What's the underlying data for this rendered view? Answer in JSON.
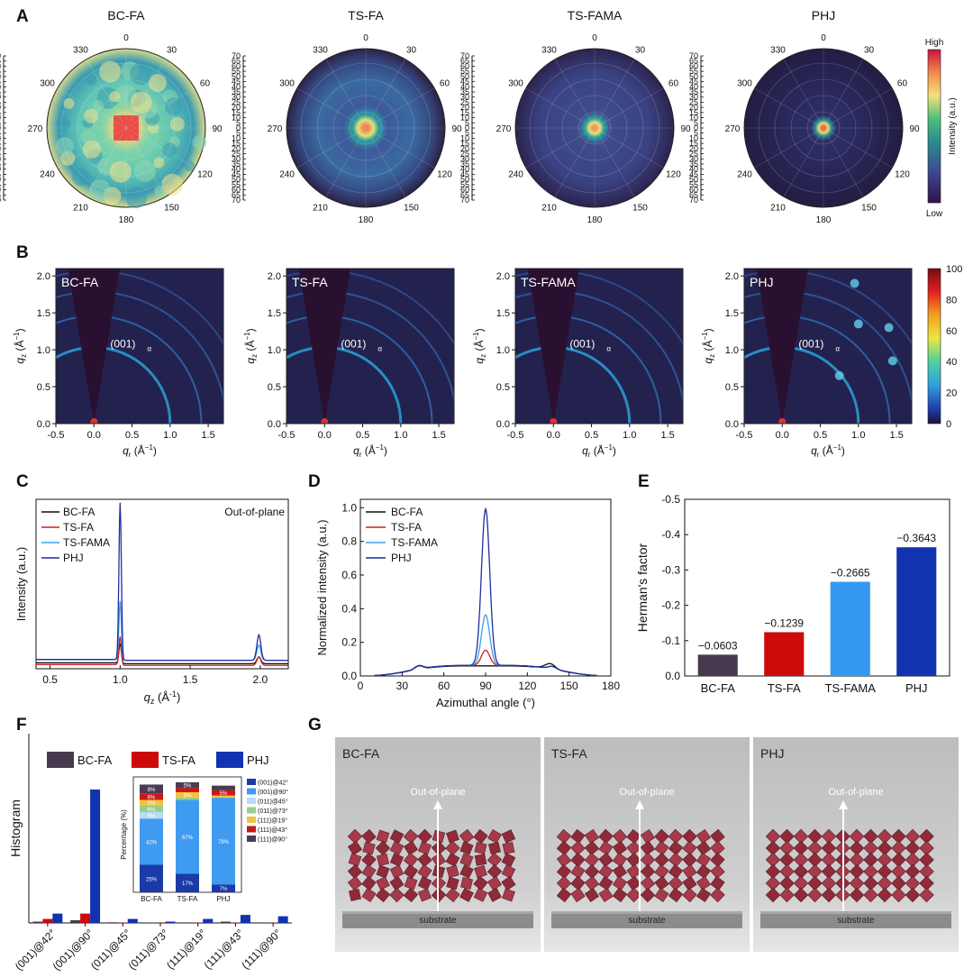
{
  "panel_letters": {
    "A": "A",
    "B": "B",
    "C": "C",
    "D": "D",
    "E": "E",
    "F": "F",
    "G": "G"
  },
  "samples": [
    "BC-FA",
    "TS-FA",
    "TS-FAMA",
    "PHJ"
  ],
  "panel_a": {
    "titles": [
      "BC-FA",
      "TS-FA",
      "TS-FAMA",
      "PHJ"
    ],
    "angle_labels": [
      "0",
      "30",
      "60",
      "90",
      "120",
      "150",
      "180",
      "210",
      "240",
      "270",
      "300",
      "330"
    ],
    "radial_ticks": [
      "70",
      "65",
      "60",
      "55",
      "50",
      "45",
      "40",
      "35",
      "30",
      "25",
      "20",
      "15",
      "10",
      "5",
      "0",
      "5",
      "10",
      "15",
      "20",
      "25",
      "30",
      "35",
      "40",
      "45",
      "50",
      "55",
      "60",
      "65",
      "70"
    ],
    "colorbar": {
      "high": "High",
      "low": "Low",
      "label": "Intensity (a.u.)"
    }
  },
  "panel_b": {
    "labels": [
      "BC-FA",
      "TS-FA",
      "TS-FAMA",
      "PHJ"
    ],
    "peak_label": "(001)",
    "peak_sub": "α",
    "ylabel_main": "q",
    "ylabel_sub": "z",
    "ylabel_unit": " (Å",
    "ylabel_exp": "−1",
    "xlabel_main": "q",
    "xlabel_sub": "r",
    "xlabel_unit": " (Å",
    "xlabel_exp": "−1",
    "unit_close": ")",
    "x_ticks": [
      "-0.5",
      "0.0",
      "0.5",
      "1.0",
      "1.5"
    ],
    "y_ticks": [
      "0.0",
      "0.5",
      "1.0",
      "1.5",
      "2.0"
    ],
    "colorbar_ticks": [
      "100",
      "80",
      "60",
      "40",
      "20",
      "0"
    ]
  },
  "chart_data": [
    {
      "id": "C",
      "type": "line",
      "title": "Out-of-plane",
      "xlabel_main": "q",
      "xlabel_sub": "z",
      "xlabel_unit": " (Å",
      "xlabel_exp": "-1",
      "xlabel_close": ")",
      "ylabel": "Intensity (a.u.)",
      "xlim": [
        0.4,
        2.2
      ],
      "x_ticks": [
        "0.5",
        "1.0",
        "1.5",
        "2.0"
      ],
      "series": [
        {
          "name": "BC-FA",
          "color": "#111111",
          "peak1": 0.12,
          "peak2": 0.04,
          "base": 0.03
        },
        {
          "name": "TS-FA",
          "color": "#cc1f1f",
          "peak1": 0.17,
          "peak2": 0.05,
          "base": 0.02
        },
        {
          "name": "TS-FAMA",
          "color": "#3aa0ea",
          "peak1": 0.35,
          "peak2": 0.09,
          "base": 0.05
        },
        {
          "name": "PHJ",
          "color": "#1f2f9e",
          "peak1": 0.95,
          "peak2": 0.15,
          "base": 0.05
        }
      ]
    },
    {
      "id": "D",
      "type": "line",
      "xlabel": "Azimuthal angle (°)",
      "ylabel": "Normalized intensity (a.u.)",
      "xlim": [
        0,
        180
      ],
      "ylim": [
        0,
        1.05
      ],
      "x_ticks": [
        "0",
        "30",
        "60",
        "90",
        "120",
        "150",
        "180"
      ],
      "y_ticks": [
        "0.0",
        "0.2",
        "0.4",
        "0.6",
        "0.8",
        "1.0"
      ],
      "series": [
        {
          "name": "BC-FA",
          "color": "#111111",
          "peak": 0.08
        },
        {
          "name": "TS-FA",
          "color": "#cc1f1f",
          "peak": 0.16
        },
        {
          "name": "TS-FAMA",
          "color": "#3aa0ea",
          "peak": 0.37
        },
        {
          "name": "PHJ",
          "color": "#1f2f9e",
          "peak": 1.0
        }
      ]
    },
    {
      "id": "E",
      "type": "bar",
      "ylabel": "Herman's factor",
      "categories": [
        "BC-FA",
        "TS-FA",
        "TS-FAMA",
        "PHJ"
      ],
      "values": [
        -0.0603,
        -0.1239,
        -0.2665,
        -0.3643
      ],
      "value_labels": [
        "−0.0603",
        "−0.1239",
        "−0.2665",
        "−0.3643"
      ],
      "colors": [
        "#473a4e",
        "#cc0a0a",
        "#3399f0",
        "#1133b0"
      ],
      "ylim": [
        0,
        -0.5
      ],
      "y_ticks": [
        "0.0",
        "-0.1",
        "-0.2",
        "-0.3",
        "-0.4",
        "-0.5"
      ]
    },
    {
      "id": "F",
      "type": "bar",
      "ylabel": "Histogram",
      "categories": [
        "(001)@42°",
        "(001)@90°",
        "(011)@45°",
        "(011)@73°",
        "(111)@19°",
        "(111)@43°",
        "(111)@90°"
      ],
      "series": [
        {
          "name": "BC-FA",
          "color": "#473a4e",
          "values": [
            0.01,
            0.02,
            0.005,
            0.002,
            0.004,
            0.01,
            0.004
          ]
        },
        {
          "name": "TS-FA",
          "color": "#cc0a0a",
          "values": [
            0.03,
            0.07,
            0.002,
            0.002,
            0.002,
            0.002,
            0.002
          ]
        },
        {
          "name": "PHJ",
          "color": "#1133b0",
          "values": [
            0.07,
            1.0,
            0.03,
            0.01,
            0.03,
            0.06,
            0.05
          ]
        }
      ]
    },
    {
      "id": "F-inset",
      "type": "bar",
      "ylabel": "Percentage (%)",
      "categories": [
        "BC-FA",
        "TS-FA",
        "PHJ"
      ],
      "legend": [
        "(001)@42°",
        "(001)@90°",
        "(011)@45°",
        "(011)@73°",
        "(111)@19°",
        "(111)@43°",
        "(111)@90°"
      ],
      "colors": [
        "#1a3aa8",
        "#3f9bf0",
        "#b7dcf3",
        "#96cf86",
        "#f3c23e",
        "#c51a1a",
        "#4a3b54"
      ],
      "stacks": [
        [
          25,
          42,
          6,
          6,
          5,
          6,
          8
        ],
        [
          17,
          67,
          0,
          2,
          5,
          4,
          5
        ],
        [
          7,
          79,
          0,
          0,
          2,
          5,
          4
        ]
      ],
      "seg_labels": [
        [
          "25%",
          "42%",
          "6%",
          "6%",
          "5%",
          "6%",
          "8%"
        ],
        [
          "17%",
          "67%",
          "",
          "",
          "5%",
          "4%",
          "5%"
        ],
        [
          "7%",
          "79%",
          "",
          "",
          "",
          "5%",
          "4%"
        ]
      ]
    }
  ],
  "panel_g": {
    "labels": [
      "BC-FA",
      "TS-FA",
      "PHJ"
    ],
    "arrow_label": "Out-of-plane",
    "substrate": "substrate"
  }
}
